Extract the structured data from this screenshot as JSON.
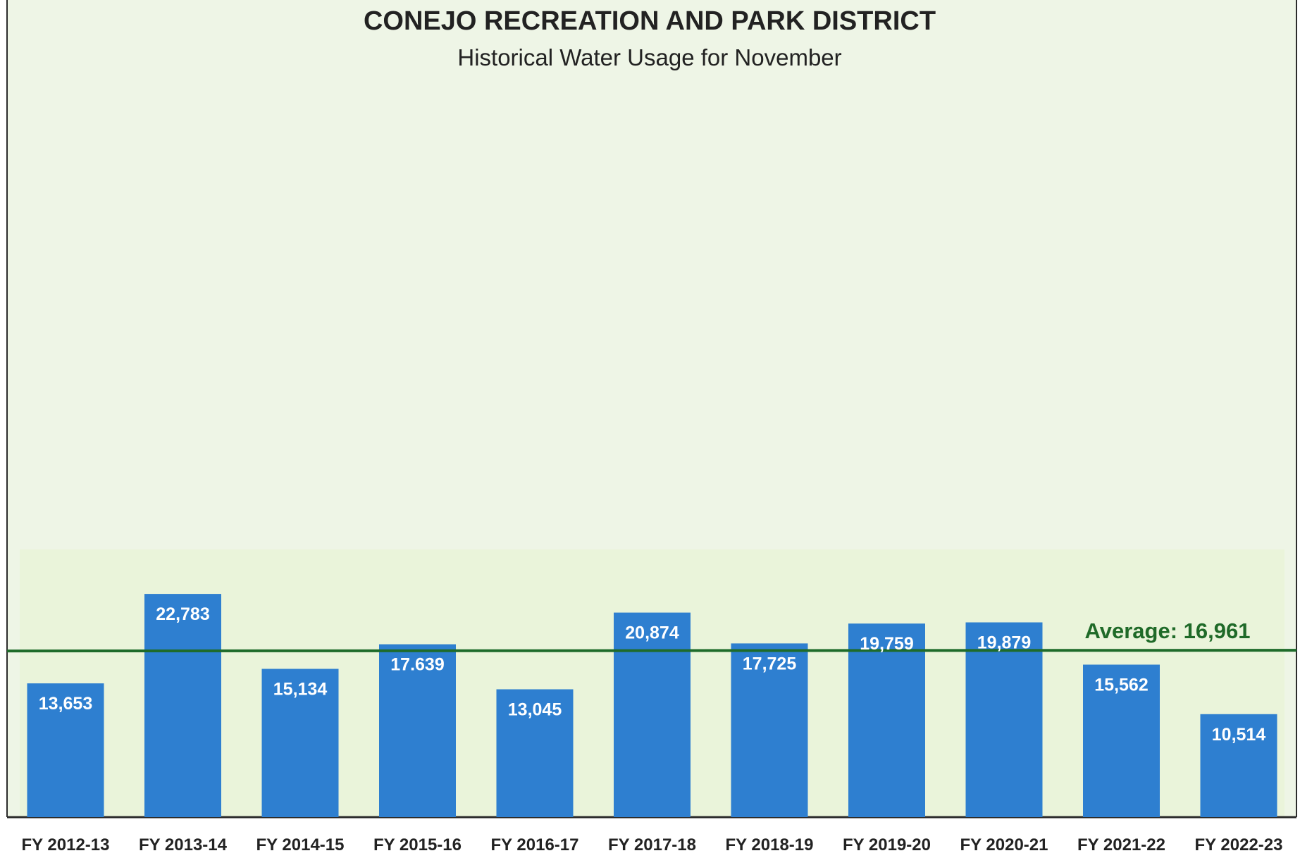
{
  "chart_data": {
    "type": "bar",
    "title": "CONEJO RECREATION AND PARK DISTRICT",
    "subtitle": "Historical Water Usage for November",
    "categories": [
      "FY 2012-13",
      "FY 2013-14",
      "FY 2014-15",
      "FY 2015-16",
      "FY 2016-17",
      "FY 2017-18",
      "FY 2018-19",
      "FY 2019-20",
      "FY 2020-21",
      "FY 2021-22",
      "FY 2022-23"
    ],
    "values": [
      13653,
      22783,
      15134,
      17639,
      13045,
      20874,
      17725,
      19759,
      19879,
      15562,
      10514
    ],
    "value_labels": [
      "13,653",
      "22,783",
      "15,134",
      "17.639",
      "13,045",
      "20,874",
      "17,725",
      "19,759",
      "19,879",
      "15,562",
      "10,514"
    ],
    "average": 16961,
    "average_label": "Average: 16,961",
    "xlabel": "",
    "ylabel": "",
    "grid": false,
    "legend": "none",
    "colors": {
      "bar": "#2e7fd0",
      "bar_edge": "#2a74bf",
      "average_line": "#1e6b2a",
      "average_text": "#1f6a28",
      "plot_bg": "#eef5e6",
      "plot_bg_band": "#eaf4da",
      "border": "#2c2c2c",
      "title": "#222222",
      "label_text": "#ffffff"
    }
  }
}
